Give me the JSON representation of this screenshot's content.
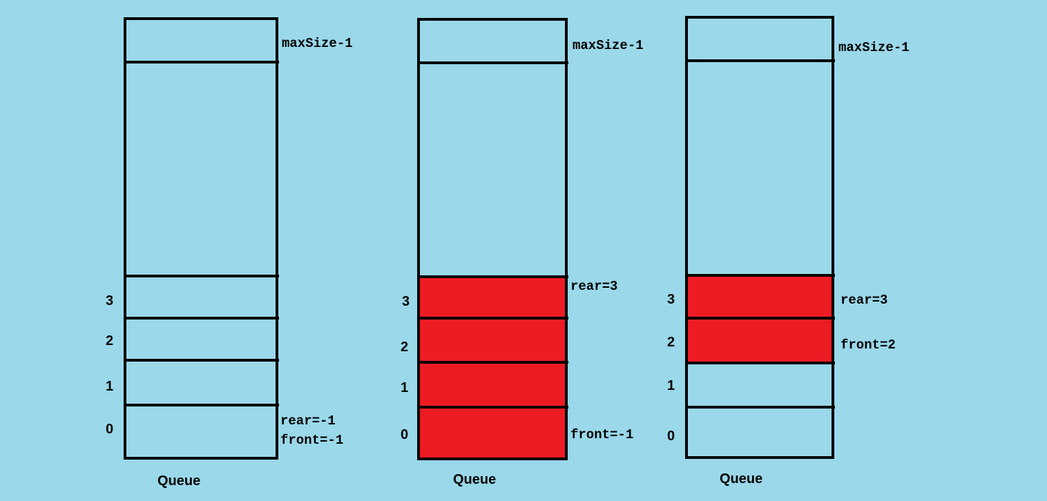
{
  "colors": {
    "background": "#9ad8ea",
    "filled": "#ed1c24",
    "stroke": "#000000"
  },
  "queues": [
    {
      "caption": "Queue",
      "top_label": "maxSize-1",
      "indices": [
        "3",
        "2",
        "1",
        "0"
      ],
      "filled": [
        false,
        false,
        false,
        false
      ],
      "pointer_labels": [
        "rear=-1",
        "front=-1"
      ]
    },
    {
      "caption": "Queue",
      "top_label": "maxSize-1",
      "indices": [
        "3",
        "2",
        "1",
        "0"
      ],
      "filled": [
        true,
        true,
        true,
        true
      ],
      "pointer_labels": [
        "rear=3",
        "front=-1"
      ]
    },
    {
      "caption": "Queue",
      "top_label": "maxSize-1",
      "indices": [
        "3",
        "2",
        "1",
        "0"
      ],
      "filled": [
        true,
        true,
        false,
        false
      ],
      "pointer_labels": [
        "rear=3",
        "front=2"
      ]
    }
  ]
}
